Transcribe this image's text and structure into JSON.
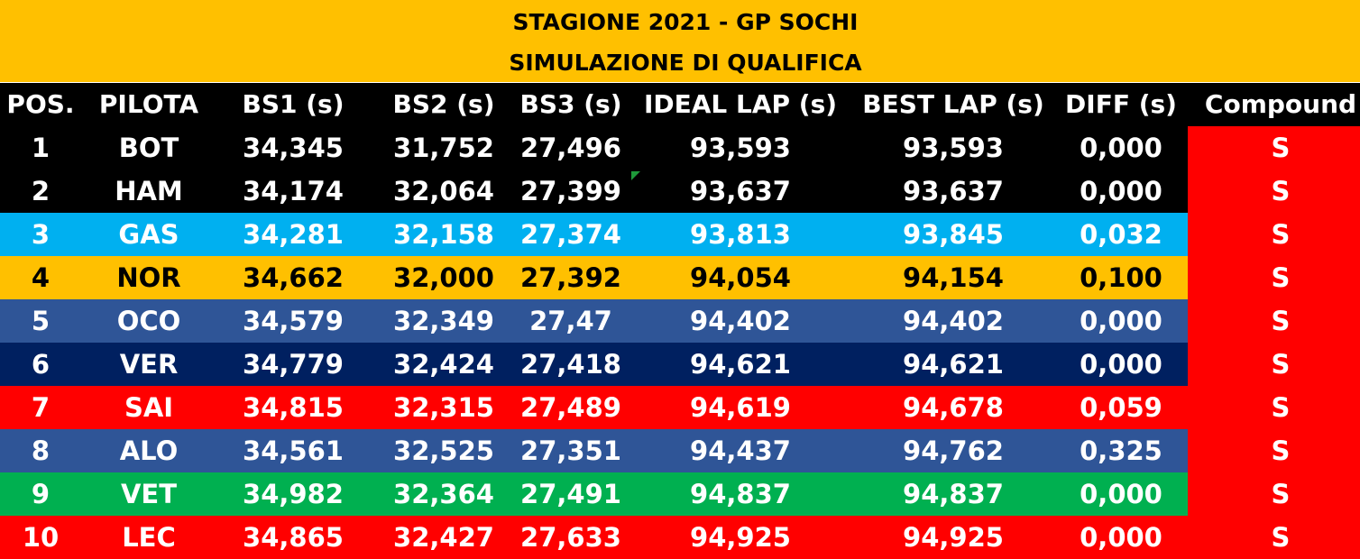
{
  "title": {
    "line1": "STAGIONE 2021 - GP SOCHI",
    "line2": "SIMULAZIONE DI QUALIFICA"
  },
  "columns": [
    "POS.",
    "PILOTA",
    "BS1 (s)",
    "BS2 (s)",
    "BS3 (s)",
    "IDEAL LAP (s)",
    "BEST LAP (s)",
    "DIFF (s)",
    "Compound"
  ],
  "colors": {
    "header_bg": "#ffc000",
    "column_header_bg": "#000000",
    "compound_bg": "#ff0000"
  },
  "rows": [
    {
      "pos": "1",
      "pilota": "BOT",
      "bs1": "34,345",
      "bs2": "31,752",
      "bs3": "27,496",
      "ideal": "93,593",
      "best": "93,593",
      "diff": "0,000",
      "compound": "S",
      "bg": "#000000",
      "fg": "#ffffff"
    },
    {
      "pos": "2",
      "pilota": "HAM",
      "bs1": "34,174",
      "bs2": "32,064",
      "bs3": "27,399",
      "ideal": "93,637",
      "best": "93,637",
      "diff": "0,000",
      "compound": "S",
      "bg": "#000000",
      "fg": "#ffffff"
    },
    {
      "pos": "3",
      "pilota": "GAS",
      "bs1": "34,281",
      "bs2": "32,158",
      "bs3": "27,374",
      "ideal": "93,813",
      "best": "93,845",
      "diff": "0,032",
      "compound": "S",
      "bg": "#00b0f0",
      "fg": "#ffffff"
    },
    {
      "pos": "4",
      "pilota": "NOR",
      "bs1": "34,662",
      "bs2": "32,000",
      "bs3": "27,392",
      "ideal": "94,054",
      "best": "94,154",
      "diff": "0,100",
      "compound": "S",
      "bg": "#ffc000",
      "fg": "#000000"
    },
    {
      "pos": "5",
      "pilota": "OCO",
      "bs1": "34,579",
      "bs2": "32,349",
      "bs3": "27,47",
      "ideal": "94,402",
      "best": "94,402",
      "diff": "0,000",
      "compound": "S",
      "bg": "#2f5597",
      "fg": "#ffffff"
    },
    {
      "pos": "6",
      "pilota": "VER",
      "bs1": "34,779",
      "bs2": "32,424",
      "bs3": "27,418",
      "ideal": "94,621",
      "best": "94,621",
      "diff": "0,000",
      "compound": "S",
      "bg": "#002060",
      "fg": "#ffffff"
    },
    {
      "pos": "7",
      "pilota": "SAI",
      "bs1": "34,815",
      "bs2": "32,315",
      "bs3": "27,489",
      "ideal": "94,619",
      "best": "94,678",
      "diff": "0,059",
      "compound": "S",
      "bg": "#ff0000",
      "fg": "#ffffff"
    },
    {
      "pos": "8",
      "pilota": "ALO",
      "bs1": "34,561",
      "bs2": "32,525",
      "bs3": "27,351",
      "ideal": "94,437",
      "best": "94,762",
      "diff": "0,325",
      "compound": "S",
      "bg": "#2f5597",
      "fg": "#ffffff"
    },
    {
      "pos": "9",
      "pilota": "VET",
      "bs1": "34,982",
      "bs2": "32,364",
      "bs3": "27,491",
      "ideal": "94,837",
      "best": "94,837",
      "diff": "0,000",
      "compound": "S",
      "bg": "#00b050",
      "fg": "#ffffff"
    },
    {
      "pos": "10",
      "pilota": "LEC",
      "bs1": "34,865",
      "bs2": "32,427",
      "bs3": "27,633",
      "ideal": "94,925",
      "best": "94,925",
      "diff": "0,000",
      "compound": "S",
      "bg": "#ff0000",
      "fg": "#ffffff"
    }
  ]
}
